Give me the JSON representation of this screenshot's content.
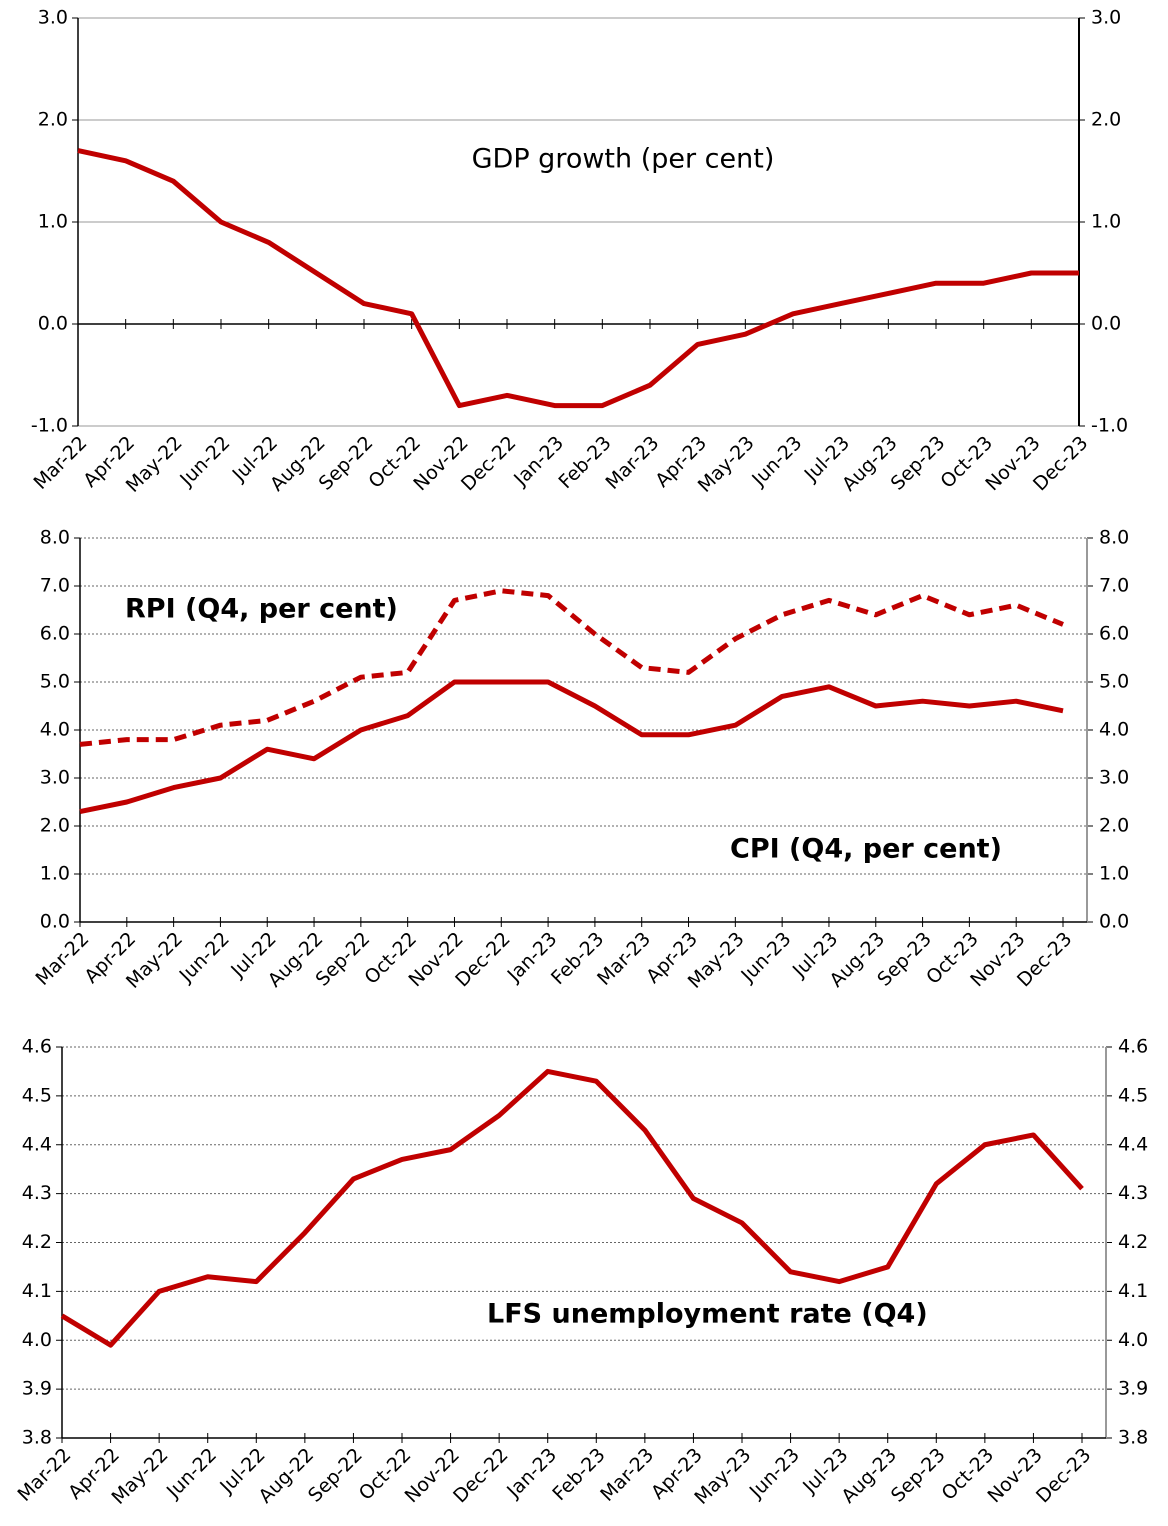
{
  "chart_data": [
    {
      "type": "line",
      "grid": true,
      "categories": [
        "Mar-22",
        "Apr-22",
        "May-22",
        "Jun-22",
        "Jul-22",
        "Aug-22",
        "Sep-22",
        "Oct-22",
        "Nov-22",
        "Dec-22",
        "Jan-23",
        "Feb-23",
        "Mar-23",
        "Apr-23",
        "May-23",
        "Jun-23",
        "Jul-23",
        "Aug-23",
        "Sep-23",
        "Oct-23",
        "Nov-23",
        "Dec-23"
      ],
      "series": [
        {
          "name": "GDP growth (per cent)",
          "color": "#c00000",
          "line_style": "solid",
          "values": [
            1.7,
            1.6,
            1.4,
            1.0,
            0.8,
            0.5,
            0.2,
            0.1,
            -0.8,
            -0.7,
            -0.8,
            -0.8,
            -0.6,
            -0.2,
            -0.1,
            0.1,
            0.2,
            0.3,
            0.4,
            0.4,
            0.5,
            0.5
          ]
        }
      ],
      "ylim": [
        -1,
        3
      ],
      "yticks": [
        {
          "value": -1,
          "label": "-1.0"
        },
        {
          "value": 0,
          "label": "0.0"
        },
        {
          "value": 1,
          "label": "1.0"
        },
        {
          "value": 2,
          "label": "2.0"
        },
        {
          "value": 3,
          "label": "3.0"
        }
      ]
    },
    {
      "type": "line",
      "grid": true,
      "categories": [
        "Mar-22",
        "Apr-22",
        "May-22",
        "Jun-22",
        "Jul-22",
        "Aug-22",
        "Sep-22",
        "Oct-22",
        "Nov-22",
        "Dec-22",
        "Jan-23",
        "Feb-23",
        "Mar-23",
        "Apr-23",
        "May-23",
        "Jun-23",
        "Jul-23",
        "Aug-23",
        "Sep-23",
        "Oct-23",
        "Nov-23",
        "Dec-23"
      ],
      "series": [
        {
          "name": "RPI (Q4, per cent)",
          "color": "#c00000",
          "line_style": "dashed",
          "values": [
            3.7,
            3.8,
            3.8,
            4.1,
            4.2,
            4.6,
            5.1,
            5.2,
            6.7,
            6.9,
            6.8,
            6.0,
            5.3,
            5.2,
            5.9,
            6.4,
            6.7,
            6.4,
            6.8,
            6.4,
            6.6,
            6.2
          ]
        },
        {
          "name": "CPI (Q4, per cent)",
          "color": "#c00000",
          "line_style": "solid",
          "values": [
            2.3,
            2.5,
            2.8,
            3.0,
            3.6,
            3.4,
            4.0,
            4.3,
            5.0,
            5.0,
            5.0,
            4.5,
            3.9,
            3.9,
            4.1,
            4.7,
            4.9,
            4.5,
            4.6,
            4.5,
            4.6,
            4.4
          ]
        }
      ],
      "ylim": [
        0,
        8
      ],
      "yticks": [
        {
          "value": 0,
          "label": "0.0"
        },
        {
          "value": 1,
          "label": "1.0"
        },
        {
          "value": 2,
          "label": "2.0"
        },
        {
          "value": 3,
          "label": "3.0"
        },
        {
          "value": 4,
          "label": "4.0"
        },
        {
          "value": 5,
          "label": "5.0"
        },
        {
          "value": 6,
          "label": "6.0"
        },
        {
          "value": 7,
          "label": "7.0"
        },
        {
          "value": 8,
          "label": "8.0"
        }
      ]
    },
    {
      "type": "line",
      "grid": true,
      "categories": [
        "Mar-22",
        "Apr-22",
        "May-22",
        "Jun-22",
        "Jul-22",
        "Aug-22",
        "Sep-22",
        "Oct-22",
        "Nov-22",
        "Dec-22",
        "Jan-23",
        "Feb-23",
        "Mar-23",
        "Apr-23",
        "May-23",
        "Jun-23",
        "Jul-23",
        "Aug-23",
        "Sep-23",
        "Oct-23",
        "Nov-23",
        "Dec-23"
      ],
      "series": [
        {
          "name": "LFS unemployment rate (Q4)",
          "color": "#c00000",
          "line_style": "solid",
          "values": [
            4.05,
            3.99,
            4.1,
            4.13,
            4.12,
            4.22,
            4.33,
            4.37,
            4.39,
            4.46,
            4.55,
            4.53,
            4.43,
            4.29,
            4.24,
            4.14,
            4.12,
            4.15,
            4.32,
            4.4,
            4.42,
            4.31
          ]
        }
      ],
      "ylim": [
        3.8,
        4.6
      ],
      "yticks": [
        {
          "value": 3.8,
          "label": "3.8"
        },
        {
          "value": 3.9,
          "label": "3.9"
        },
        {
          "value": 4.0,
          "label": "4.0"
        },
        {
          "value": 4.1,
          "label": "4.1"
        },
        {
          "value": 4.2,
          "label": "4.2"
        },
        {
          "value": 4.3,
          "label": "4.3"
        },
        {
          "value": 4.4,
          "label": "4.4"
        },
        {
          "value": 4.5,
          "label": "4.5"
        },
        {
          "value": 4.6,
          "label": "4.6"
        }
      ]
    }
  ]
}
